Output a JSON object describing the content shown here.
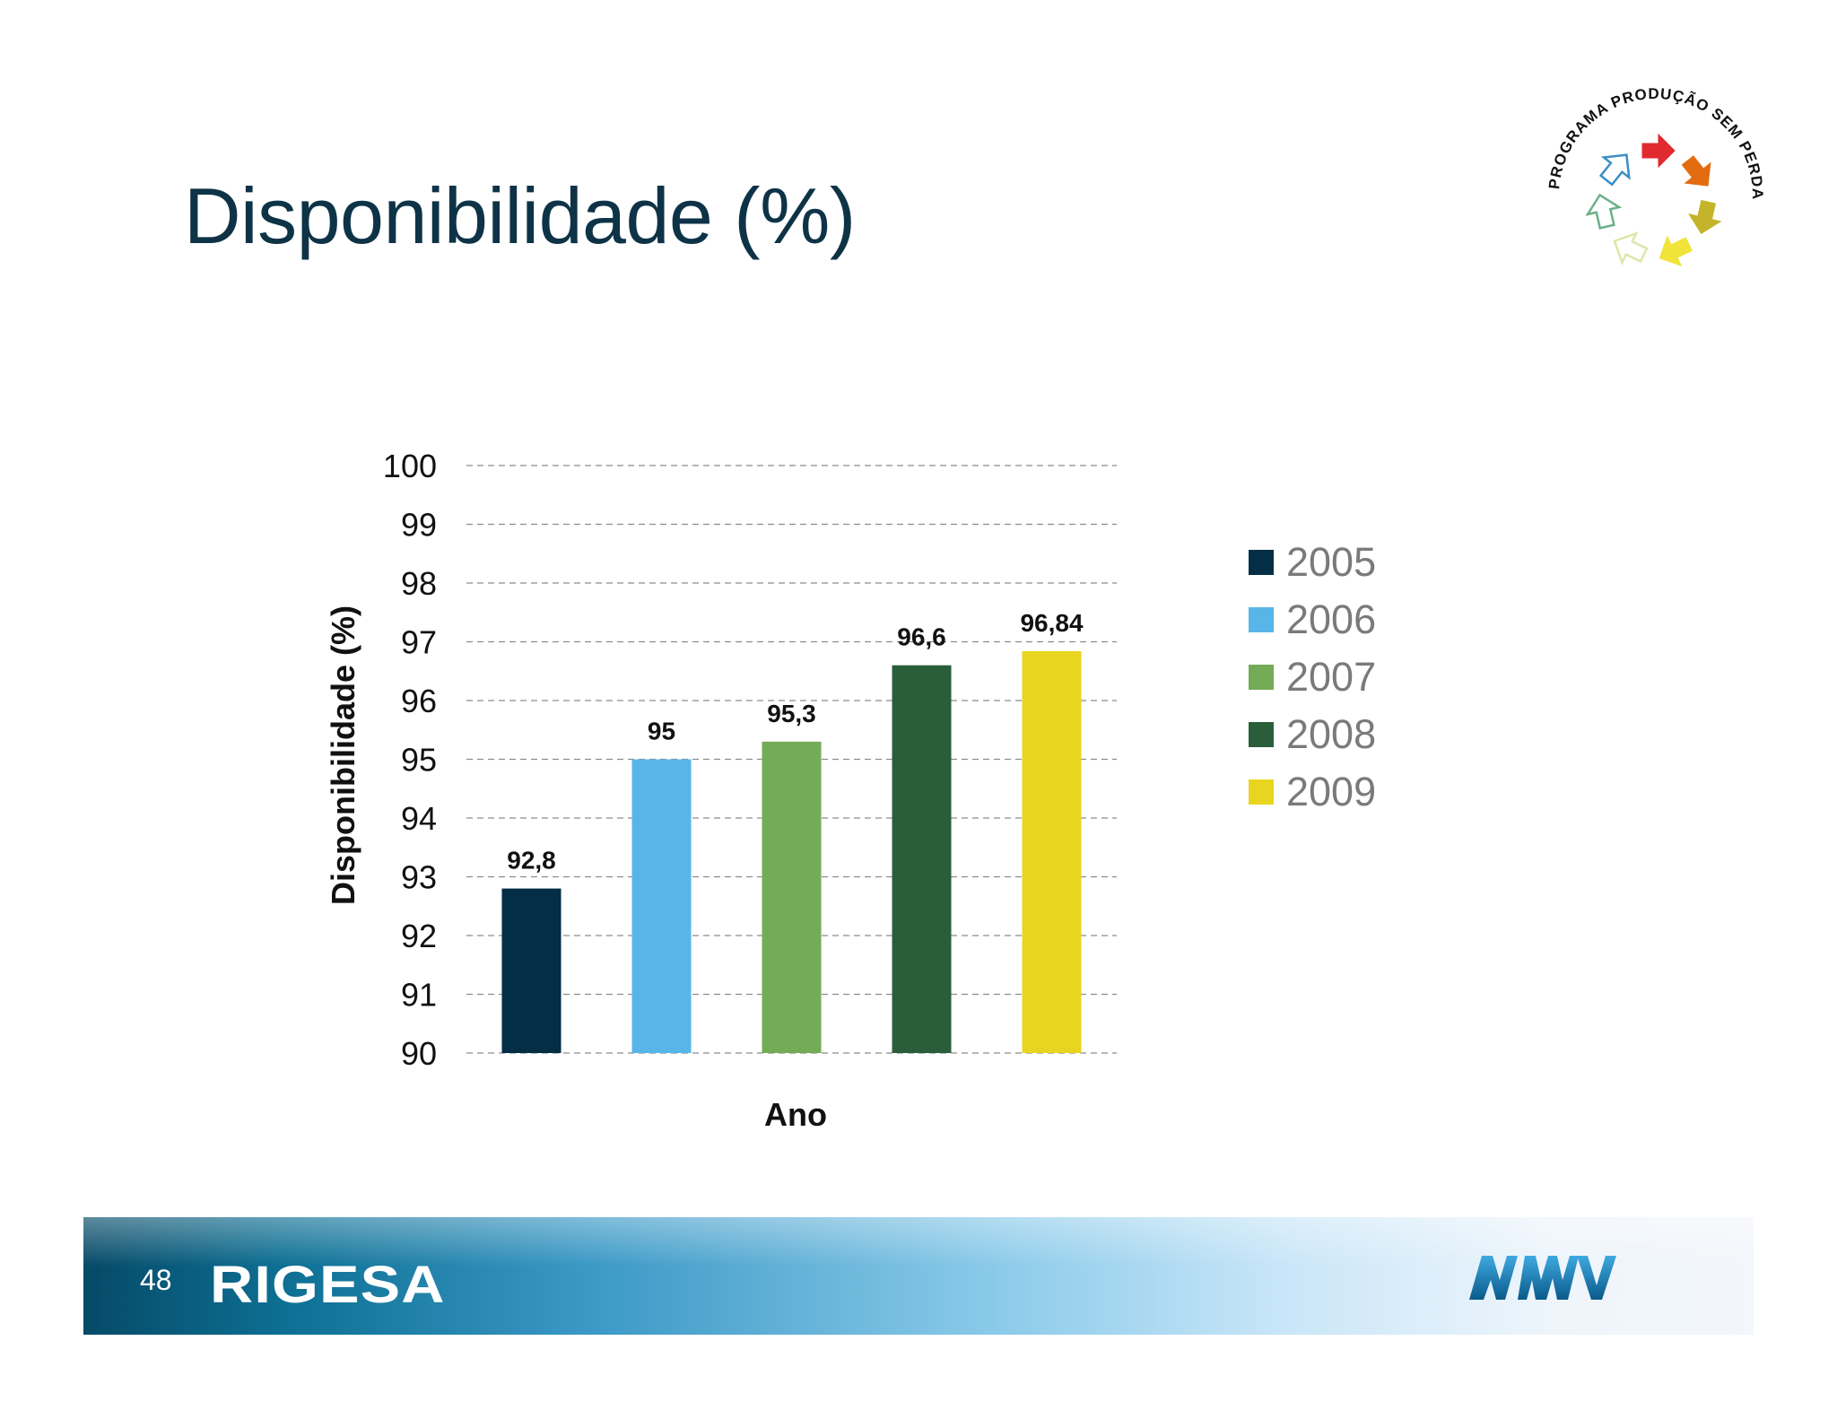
{
  "slide": {
    "title": "Disponibilidade (%)",
    "page_number": "48"
  },
  "logos": {
    "program_text": "PROGRAMA PRODUÇÃO SEM PERDAS",
    "program_arrow_colors": [
      "#e02a2f",
      "#e36c10",
      "#c4b42a",
      "#f0e43a",
      "#dfe6a8",
      "#6bb08a",
      "#3a8fc5"
    ],
    "company": "RIGESA",
    "parent_company": "MWV"
  },
  "chart_data": {
    "type": "bar",
    "title": "",
    "xlabel": "Ano",
    "ylabel": "Disponibilidade (%)",
    "ylim": [
      90,
      100
    ],
    "yticks": [
      90,
      91,
      92,
      93,
      94,
      95,
      96,
      97,
      98,
      99,
      100
    ],
    "grid": true,
    "legend_position": "right",
    "series": [
      {
        "name": "2005",
        "value": 92.8,
        "label": "92,8",
        "color": "#032e45"
      },
      {
        "name": "2006",
        "value": 95,
        "label": "95",
        "color": "#58b5e8"
      },
      {
        "name": "2007",
        "value": 95.3,
        "label": "95,3",
        "color": "#74ab56"
      },
      {
        "name": "2008",
        "value": 96.6,
        "label": "96,6",
        "color": "#2a5e3b"
      },
      {
        "name": "2009",
        "value": 96.84,
        "label": "96,84",
        "color": "#e8d520"
      }
    ]
  }
}
